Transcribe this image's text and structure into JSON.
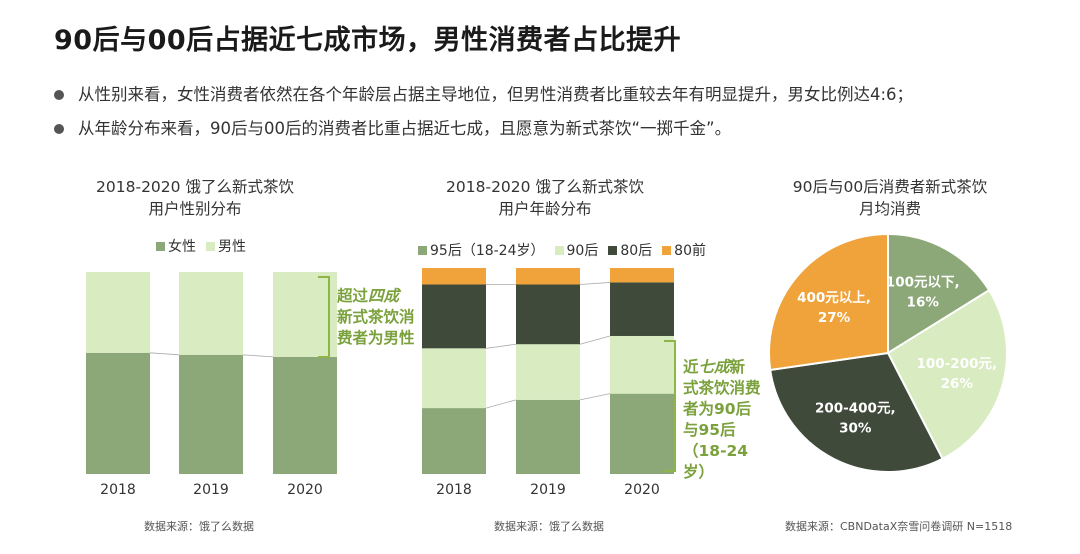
{
  "title": "90后与00后占据近七成市场，男性消费者占比提升",
  "bullets": [
    "从性别来看，女性消费者依然在各个年龄层占据主导地位，但男性消费者比重较去年有明显提升，男女比例达4:6；",
    "从年龄分布来看，90后与00后的消费者比重占据近七成，且愿意为新式茶饮“一掷千金”。"
  ],
  "colors": {
    "female": "#8ca878",
    "male": "#d9ebc0",
    "age95": "#8ca878",
    "age90": "#d9ebc0",
    "age80": "#3f4a3a",
    "age80pre": "#f0a33a",
    "annot": "#7aa13c"
  },
  "chart_data": [
    {
      "type": "bar",
      "stacked": true,
      "title_line1": "2018-2020 饿了么新式茶饮",
      "title_line2": "用户性别分布",
      "categories": [
        "2018",
        "2019",
        "2020"
      ],
      "series": [
        {
          "name": "女性",
          "values": [
            0.6,
            0.59,
            0.58
          ]
        },
        {
          "name": "男性",
          "values": [
            0.4,
            0.41,
            0.42
          ]
        }
      ],
      "annotation": {
        "pre": "超过",
        "em": "四成",
        "rest": [
          "新式茶饮消",
          "费者为男性"
        ]
      },
      "source": "数据来源：饿了么数据"
    },
    {
      "type": "bar",
      "stacked": true,
      "title_line1": "2018-2020 饿了么新式茶饮",
      "title_line2": "用户年龄分布",
      "categories": [
        "2018",
        "2019",
        "2020"
      ],
      "series": [
        {
          "name": "95后（18-24岁）",
          "values": [
            0.32,
            0.36,
            0.39
          ]
        },
        {
          "name": "90后",
          "values": [
            0.29,
            0.27,
            0.28
          ]
        },
        {
          "name": "80后",
          "values": [
            0.31,
            0.29,
            0.26
          ]
        },
        {
          "name": "80前",
          "values": [
            0.08,
            0.08,
            0.07
          ]
        }
      ],
      "annotation": {
        "pre": "近",
        "em": "七成",
        "rest": [
          "新",
          "式茶饮消费",
          "者为90后",
          "与95后",
          "（18-24",
          "岁）"
        ]
      },
      "source": "数据来源：饿了么数据"
    },
    {
      "type": "pie",
      "title_line1": "90后与00后消费者新式茶饮",
      "title_line2": "月均消费",
      "slices": [
        {
          "label": "100元以下,",
          "pct": "16%",
          "value": 16
        },
        {
          "label": "100-200元,",
          "pct": "26%",
          "value": 26
        },
        {
          "label": "200-400元,",
          "pct": "30%",
          "value": 30
        },
        {
          "label": "400元以上,",
          "pct": "27%",
          "value": 27
        }
      ],
      "source": "数据来源：CBNDataX奈雪问卷调研 N=1518"
    }
  ]
}
